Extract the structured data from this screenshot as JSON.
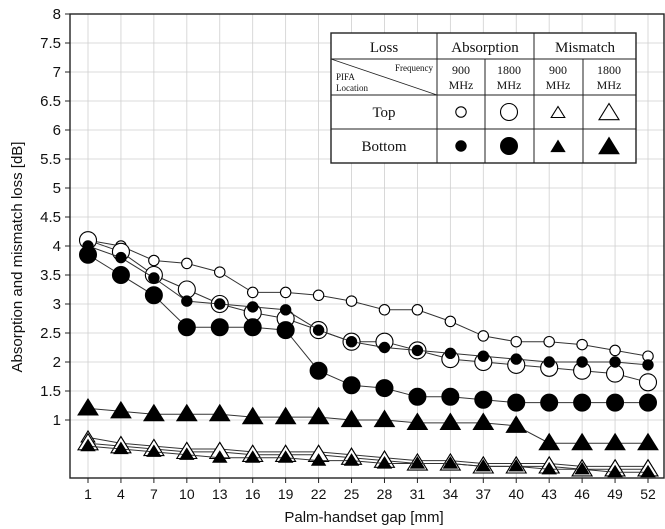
{
  "chart_data": {
    "type": "scatter",
    "xlabel": "Palm-handset gap [mm]",
    "ylabel": "Absorption and mismatch loss [dB]",
    "x": [
      1,
      4,
      7,
      10,
      13,
      16,
      19,
      22,
      25,
      28,
      31,
      34,
      37,
      40,
      43,
      46,
      49,
      52
    ],
    "y_ticks": [
      "1",
      "1.5",
      "2",
      "2.5",
      "3",
      "3.5",
      "4",
      "4.5",
      "5",
      "5.5",
      "6",
      "6.5",
      "7",
      "7.5",
      "8"
    ],
    "ylim": [
      0,
      8
    ],
    "legend": {
      "placement": "top-right",
      "header": {
        "loss": "Loss",
        "absorption": "Absorption",
        "mismatch": "Mismatch"
      },
      "corner": {
        "frequency": "Frequency",
        "pifa": "PIFA",
        "location": "Location"
      },
      "freq_labels": [
        {
          "value": "900",
          "unit": "MHz"
        },
        {
          "value": "1800",
          "unit": "MHz"
        },
        {
          "value": "900",
          "unit": "MHz"
        },
        {
          "value": "1800",
          "unit": "MHz"
        }
      ],
      "rows": [
        "Top",
        "Bottom"
      ]
    },
    "series": [
      {
        "loss": "Absorption",
        "frequency": "900 MHz",
        "location": "Top",
        "marker": "circle-open-small",
        "values": [
          4.1,
          4.0,
          3.75,
          3.7,
          3.55,
          3.2,
          3.2,
          3.15,
          3.05,
          2.9,
          2.9,
          2.7,
          2.45,
          2.35,
          2.35,
          2.3,
          2.2,
          2.1
        ]
      },
      {
        "loss": "Absorption",
        "frequency": "1800 MHz",
        "location": "Top",
        "marker": "circle-open-large",
        "values": [
          4.1,
          3.9,
          3.5,
          3.25,
          3.0,
          2.85,
          2.75,
          2.55,
          2.35,
          2.35,
          2.2,
          2.05,
          2.0,
          1.95,
          1.9,
          1.85,
          1.8,
          1.65
        ]
      },
      {
        "loss": "Absorption",
        "frequency": "900 MHz",
        "location": "Bottom",
        "marker": "circle-filled-small",
        "values": [
          4.0,
          3.8,
          3.45,
          3.05,
          3.0,
          2.95,
          2.9,
          2.55,
          2.35,
          2.25,
          2.2,
          2.15,
          2.1,
          2.05,
          2.0,
          2.0,
          2.0,
          1.95
        ]
      },
      {
        "loss": "Absorption",
        "frequency": "1800 MHz",
        "location": "Bottom",
        "marker": "circle-filled-large",
        "values": [
          3.85,
          3.5,
          3.15,
          2.6,
          2.6,
          2.6,
          2.55,
          1.85,
          1.6,
          1.55,
          1.4,
          1.4,
          1.35,
          1.3,
          1.3,
          1.3,
          1.3,
          1.3
        ]
      },
      {
        "loss": "Mismatch",
        "frequency": "900 MHz",
        "location": "Top",
        "marker": "triangle-open-small",
        "values": [
          0.7,
          0.6,
          0.55,
          0.5,
          0.5,
          0.45,
          0.45,
          0.45,
          0.4,
          0.35,
          0.3,
          0.3,
          0.25,
          0.25,
          0.25,
          0.2,
          0.2,
          0.2
        ]
      },
      {
        "loss": "Mismatch",
        "frequency": "1800 MHz",
        "location": "Top",
        "marker": "triangle-open-large",
        "values": [
          0.6,
          0.55,
          0.5,
          0.45,
          0.45,
          0.4,
          0.4,
          0.4,
          0.35,
          0.3,
          0.25,
          0.25,
          0.2,
          0.2,
          0.2,
          0.15,
          0.15,
          0.15
        ]
      },
      {
        "loss": "Mismatch",
        "frequency": "900 MHz",
        "location": "Bottom",
        "marker": "triangle-filled-small",
        "values": [
          0.55,
          0.5,
          0.45,
          0.4,
          0.35,
          0.35,
          0.35,
          0.3,
          0.3,
          0.25,
          0.25,
          0.25,
          0.2,
          0.2,
          0.15,
          0.15,
          0.1,
          0.1
        ]
      },
      {
        "loss": "Mismatch",
        "frequency": "1800 MHz",
        "location": "Bottom",
        "marker": "triangle-filled-large",
        "values": [
          1.2,
          1.15,
          1.1,
          1.1,
          1.1,
          1.05,
          1.05,
          1.05,
          1.0,
          1.0,
          0.95,
          0.95,
          0.95,
          0.9,
          0.6,
          0.6,
          0.6,
          0.6
        ]
      }
    ]
  }
}
